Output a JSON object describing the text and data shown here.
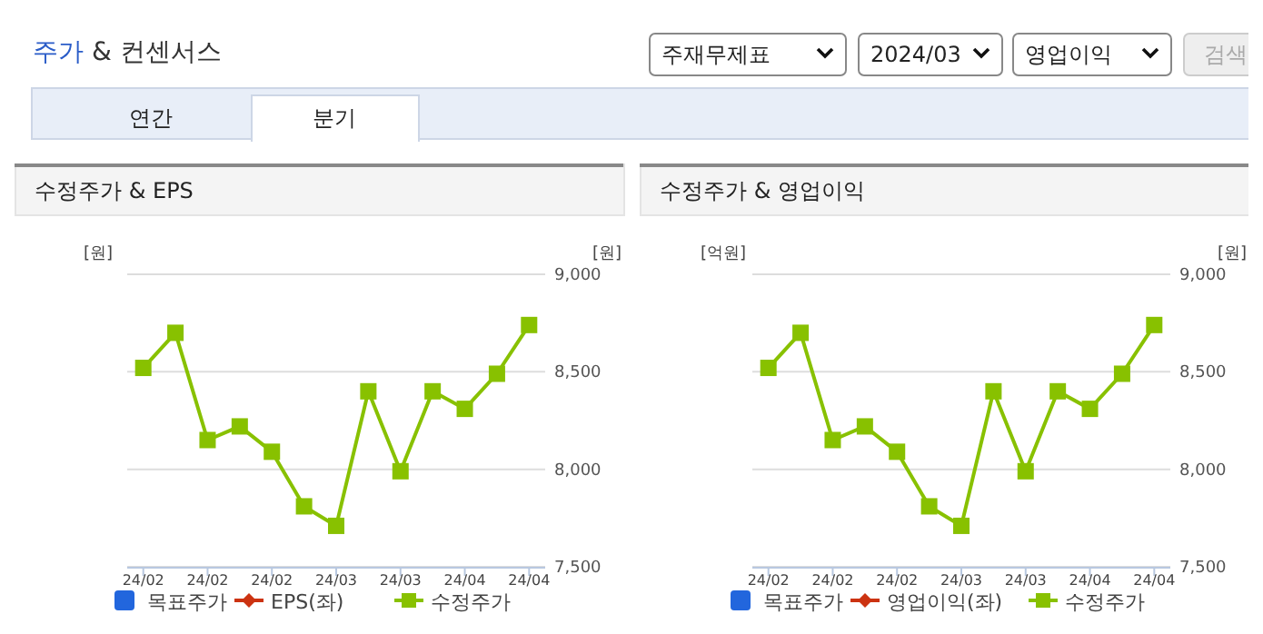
{
  "chart_data": [
    {
      "type": "other",
      "title": "주가 & 컨센서스",
      "annotations": [
        "주재무제표",
        "2024/03",
        "영업이익",
        "검색",
        "연간",
        "분기"
      ]
    },
    {
      "type": "line",
      "title": "수정주가 & EPS",
      "ylabel": "[원]",
      "y2label": "[원]",
      "categories": [
        "24/02",
        null,
        "24/02",
        null,
        "24/02",
        null,
        "24/03",
        null,
        "24/03",
        null,
        "24/04",
        null,
        "24/04"
      ],
      "y2lim": [
        7500,
        9000
      ],
      "y2ticks": [
        {
          "value": 7500,
          "label": "7,500"
        },
        {
          "value": 8000,
          "label": "8,000"
        },
        {
          "value": 8500,
          "label": "8,500"
        },
        {
          "value": 9000,
          "label": "9,000"
        }
      ],
      "grid": "y",
      "legend": "bottom",
      "marker": "square",
      "series": [
        {
          "name": "목표주가",
          "type": "bar",
          "color": "#2266dd",
          "values": [
            null,
            null,
            null,
            null,
            null,
            null,
            null,
            null,
            null,
            null,
            null,
            null,
            null
          ]
        },
        {
          "name": "EPS(좌)",
          "color": "#cc3311",
          "marker": "diamond",
          "values": [
            null,
            null,
            null,
            null,
            null,
            null,
            null,
            null,
            null,
            null,
            null,
            null,
            null
          ]
        },
        {
          "name": "수정주가",
          "color": "#88c100",
          "axis": "y2",
          "values": [
            8520,
            8700,
            8150,
            8220,
            8090,
            7810,
            7710,
            8400,
            7990,
            8400,
            8310,
            8490,
            8740
          ]
        }
      ]
    },
    {
      "type": "line",
      "title": "수정주가 & 영업이익",
      "ylabel": "[억원]",
      "y2label": "[원]",
      "categories": [
        "24/02",
        null,
        "24/02",
        null,
        "24/02",
        null,
        "24/03",
        null,
        "24/03",
        null,
        "24/04",
        null,
        "24/04"
      ],
      "y2lim": [
        7500,
        9000
      ],
      "y2ticks": [
        {
          "value": 7500,
          "label": "7,500"
        },
        {
          "value": 8000,
          "label": "8,000"
        },
        {
          "value": 8500,
          "label": "8,500"
        },
        {
          "value": 9000,
          "label": "9,000"
        }
      ],
      "grid": "y",
      "legend": "bottom",
      "marker": "square",
      "series": [
        {
          "name": "목표주가",
          "type": "bar",
          "color": "#2266dd",
          "values": [
            null,
            null,
            null,
            null,
            null,
            null,
            null,
            null,
            null,
            null,
            null,
            null,
            null
          ]
        },
        {
          "name": "영업이익(좌)",
          "color": "#cc3311",
          "marker": "diamond",
          "values": [
            null,
            null,
            null,
            null,
            null,
            null,
            null,
            null,
            null,
            null,
            null,
            null,
            null
          ]
        },
        {
          "name": "수정주가",
          "color": "#88c100",
          "axis": "y2",
          "values": [
            8520,
            8700,
            8150,
            8220,
            8090,
            7810,
            7710,
            8400,
            7990,
            8400,
            8310,
            8490,
            8740
          ]
        }
      ]
    }
  ]
}
